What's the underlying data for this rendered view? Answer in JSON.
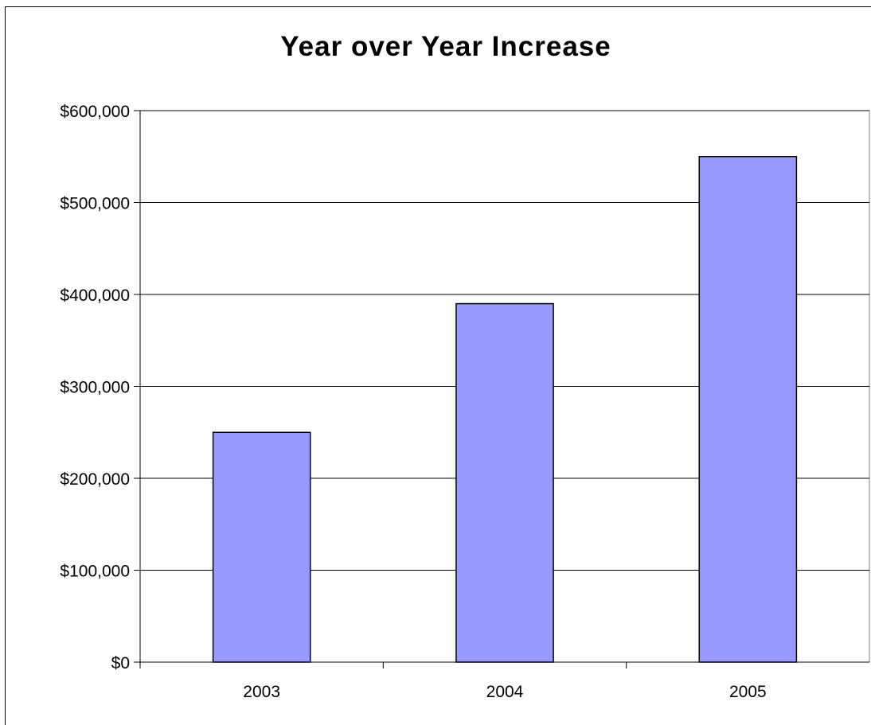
{
  "chart_data": {
    "type": "bar",
    "title": "Year over Year Increase",
    "categories": [
      "2003",
      "2004",
      "2005"
    ],
    "values": [
      250000,
      390000,
      550000
    ],
    "ylim": [
      0,
      600000
    ],
    "yticks": [
      0,
      100000,
      200000,
      300000,
      400000,
      500000,
      600000
    ],
    "ytick_labels": [
      "$0",
      "$100,000",
      "$200,000",
      "$300,000",
      "$400,000",
      "$500,000",
      "$600,000"
    ],
    "grid": true,
    "legend": "none",
    "bar_color": "#9999ff"
  }
}
